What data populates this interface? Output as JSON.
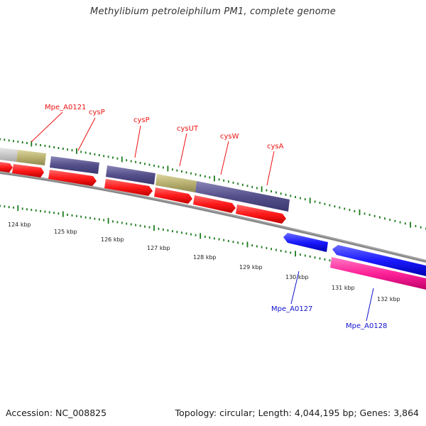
{
  "title": "Methylibium petroleiphilum PM1, complete genome",
  "accession": "Accession: NC_008825",
  "topology": "Topology: circular; Length: 4,044,195 bp; Genes: 3,864",
  "tick_labels": [
    "124 kbp",
    "125 kbp",
    "126 kbp",
    "127 kbp",
    "128 kbp",
    "129 kbp",
    "130 kbp",
    "131 kbp",
    "132 kbp"
  ],
  "gene_labels_top": [
    "Mpe_A0121",
    "cysP",
    "cysP",
    "cysUT",
    "cysW",
    "cysA"
  ],
  "gene_labels_bottom": [
    "Mpe_A0127",
    "Mpe_A0128"
  ],
  "colors": {
    "forward_cds": "#ff1a1a",
    "reverse_cds": "#1a1aff",
    "rna_pink": "#ff2299",
    "purple_feature": "#55508a",
    "olive_feature": "#b8b070",
    "grey_feature": "#c8c8c8",
    "backbone": "#808080",
    "tick_green": "#1a7a1a",
    "label_red": "#ee1111",
    "label_blue": "#1111cc"
  }
}
